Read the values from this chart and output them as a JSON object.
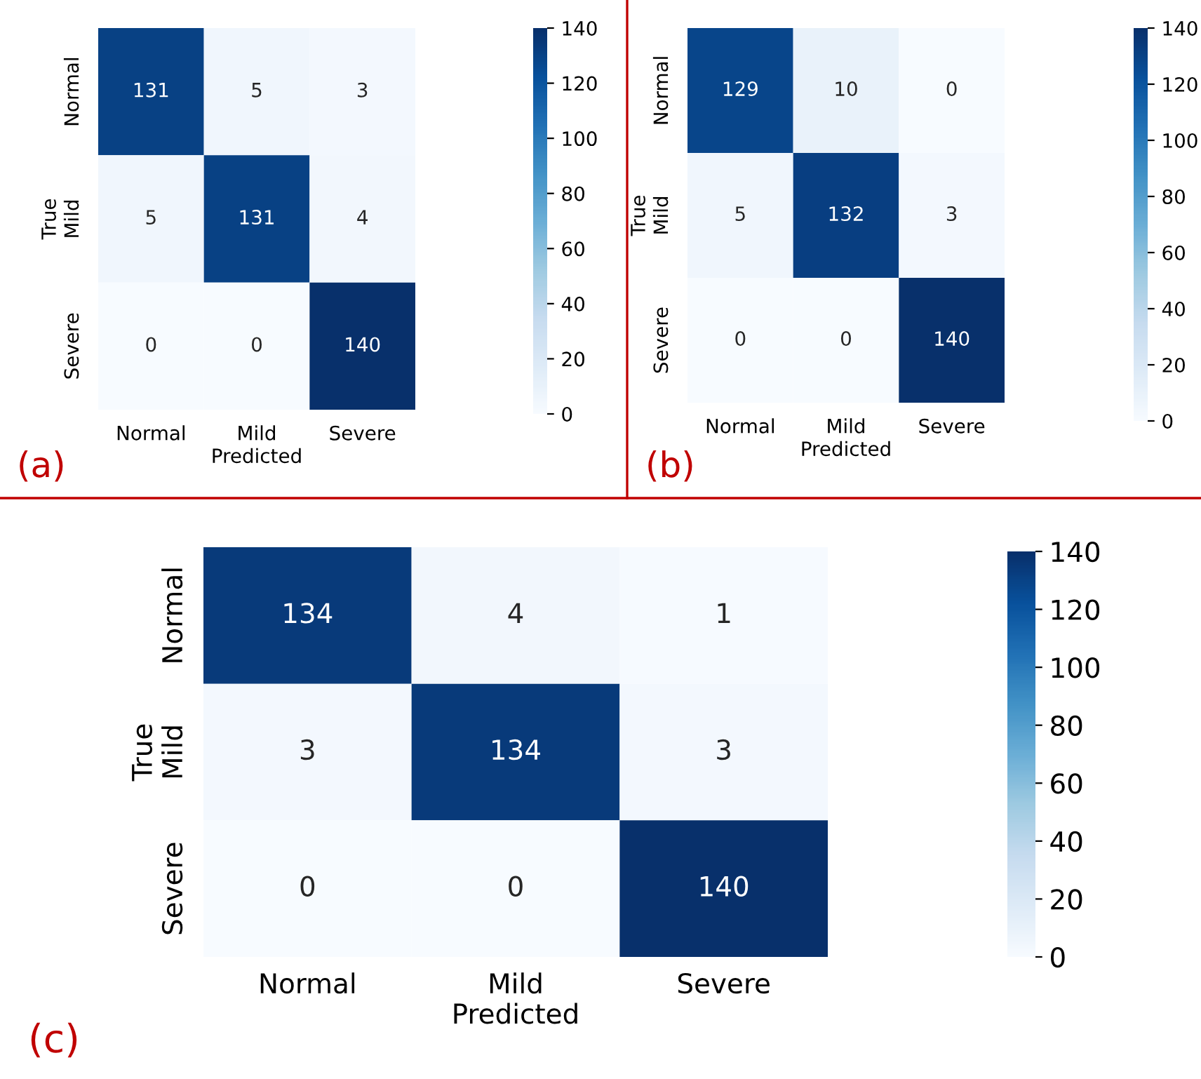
{
  "chart_data": [
    {
      "type": "heatmap",
      "xlabel": "Predicted",
      "ylabel": "True",
      "categories": [
        "Normal",
        "Mild",
        "Severe"
      ],
      "y_categories": [
        "Normal",
        "Mild",
        "Severe"
      ],
      "cells": [
        [
          131,
          5,
          3
        ],
        [
          5,
          131,
          4
        ],
        [
          0,
          0,
          140
        ]
      ],
      "data_labels": true,
      "clim": [
        0,
        140
      ],
      "cticks": [
        0,
        20,
        40,
        60,
        80,
        100,
        120,
        140
      ],
      "annotations": [
        "(a)"
      ]
    },
    {
      "type": "heatmap",
      "xlabel": "Predicted",
      "ylabel": "True",
      "categories": [
        "Normal",
        "Mild",
        "Severe"
      ],
      "y_categories": [
        "Normal",
        "Mild",
        "Severe"
      ],
      "cells": [
        [
          129,
          10,
          0
        ],
        [
          5,
          132,
          3
        ],
        [
          0,
          0,
          140
        ]
      ],
      "data_labels": true,
      "clim": [
        0,
        140
      ],
      "cticks": [
        0,
        20,
        40,
        60,
        80,
        100,
        120,
        140
      ],
      "annotations": [
        "(b)"
      ]
    },
    {
      "type": "heatmap",
      "xlabel": "Predicted",
      "ylabel": "True",
      "categories": [
        "Normal",
        "Mild",
        "Severe"
      ],
      "y_categories": [
        "Normal",
        "Mild",
        "Severe"
      ],
      "cells": [
        [
          134,
          4,
          1
        ],
        [
          3,
          134,
          3
        ],
        [
          0,
          0,
          140
        ]
      ],
      "data_labels": true,
      "clim": [
        0,
        140
      ],
      "cticks": [
        0,
        20,
        40,
        60,
        80,
        100,
        120,
        140
      ],
      "annotations": [
        "(c)"
      ]
    }
  ]
}
